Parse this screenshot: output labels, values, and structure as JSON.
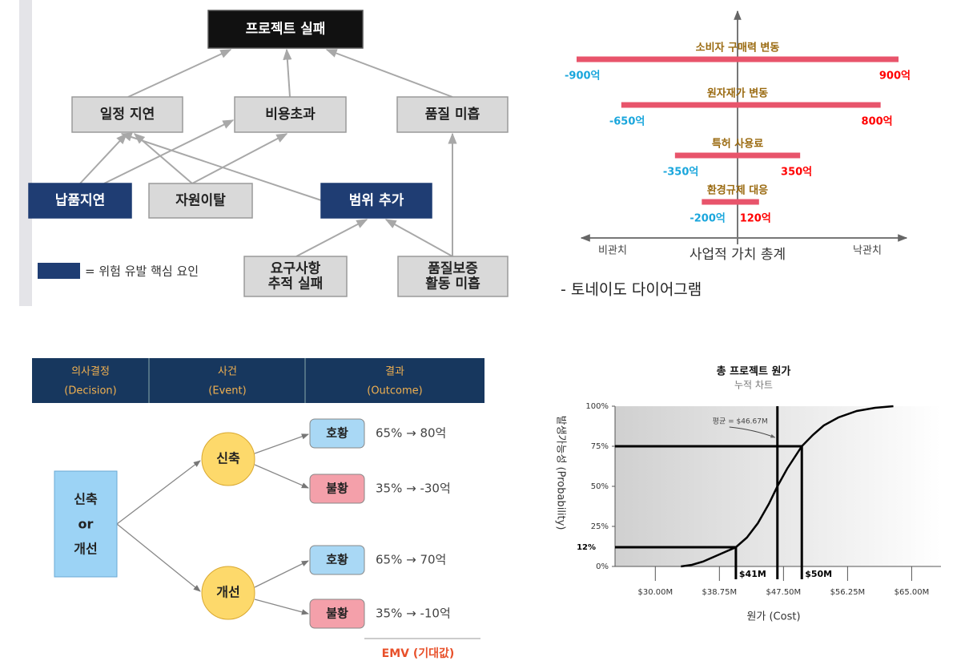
{
  "risk_diagram": {
    "nodes": [
      {
        "lines": [
          "프로젝트 실패"
        ],
        "kind": "root"
      },
      {
        "lines": [
          "일정 지연"
        ],
        "kind": "effect"
      },
      {
        "lines": [
          "비용초과"
        ],
        "kind": "effect"
      },
      {
        "lines": [
          "품질 미흡"
        ],
        "kind": "effect"
      },
      {
        "lines": [
          "납품지연"
        ],
        "kind": "key"
      },
      {
        "lines": [
          "자원이탈"
        ],
        "kind": "effect"
      },
      {
        "lines": [
          "범위 추가"
        ],
        "kind": "key"
      },
      {
        "lines": [
          "요구사항",
          "추적 실패"
        ],
        "kind": "effect"
      },
      {
        "lines": [
          "품질보증",
          "활동 미흡"
        ],
        "kind": "effect"
      }
    ],
    "legend": "= 위험 유발 핵심 요인"
  },
  "decision_tree": {
    "headers": [
      [
        "의사결정",
        "(Decision)"
      ],
      [
        "사건",
        "(Event)"
      ],
      [
        "결과",
        "(Outcome)"
      ]
    ],
    "decision": [
      "신축",
      "or",
      "개선"
    ],
    "events": [
      {
        "label": "신축",
        "outcomes": [
          {
            "label": "호황",
            "result": "65% → 80억"
          },
          {
            "label": "불황",
            "result": "35% → -30억"
          }
        ]
      },
      {
        "label": "개선",
        "outcomes": [
          {
            "label": "호황",
            "result": "65% → 70억"
          },
          {
            "label": "불황",
            "result": "35% → -10억"
          }
        ]
      }
    ],
    "footer": "EMV (기대값)"
  },
  "chart_data": [
    {
      "type": "tornado",
      "categories": [
        "소비자 구매력 변동",
        "원자재가 변동",
        "특허 사용료",
        "환경규제 대응"
      ],
      "low": [
        -900,
        -650,
        -350,
        -200
      ],
      "high": [
        900,
        800,
        350,
        120
      ],
      "low_labels": [
        "-900억",
        "-650억",
        "-350억",
        "-200억"
      ],
      "high_labels": [
        "900억",
        "800억",
        "350억",
        "120억"
      ],
      "color": "#e8546b",
      "low_label_color": "#1aa6dc",
      "high_label_color": "#ff0000",
      "xlim": [
        -900,
        900
      ],
      "x_axis_left": "비관치",
      "x_axis_right": "낙관치",
      "xlabel": "사업적 가치 총계",
      "caption": "- 토네이도 다이어그램"
    },
    {
      "type": "line",
      "title": "총 프로젝트 원가",
      "subtitle": "누적 차트",
      "xlabel": "원가 (Cost)",
      "ylabel": "발생가능성 (Probability)",
      "x": [
        33.5,
        35,
        36.5,
        38,
        39.5,
        41,
        42.5,
        44,
        45.5,
        46.67,
        48,
        49,
        50,
        51.5,
        53,
        55,
        57.5,
        60,
        62.5
      ],
      "values": [
        0,
        1,
        3,
        6,
        9,
        12,
        18,
        27,
        39,
        50,
        61,
        68,
        75,
        82,
        88,
        93,
        97,
        99,
        100
      ],
      "color": "#000000",
      "xlim": [
        24.5,
        69
      ],
      "ylim": [
        0,
        100
      ],
      "xticks": [
        {
          "value": 30,
          "label": "$30.00M"
        },
        {
          "value": 38.75,
          "label": "$38.75M"
        },
        {
          "value": 47.5,
          "label": "$47.50M"
        },
        {
          "value": 56.25,
          "label": "$56.25M"
        },
        {
          "value": 65,
          "label": "$65.00M"
        }
      ],
      "yticks": [
        {
          "value": 0,
          "label": "0%"
        },
        {
          "value": 25,
          "label": "25%"
        },
        {
          "value": 50,
          "label": "50%"
        },
        {
          "value": 75,
          "label": "75%"
        },
        {
          "value": 100,
          "label": "100%"
        }
      ],
      "markers": [
        {
          "x": 41,
          "y": 12,
          "x_label": "$41M",
          "y_label": "12%"
        },
        {
          "x": 50,
          "y": 75,
          "x_label": "$50M"
        }
      ],
      "mean": {
        "value": 46.67,
        "label": "평균 = $46.67M"
      }
    }
  ]
}
